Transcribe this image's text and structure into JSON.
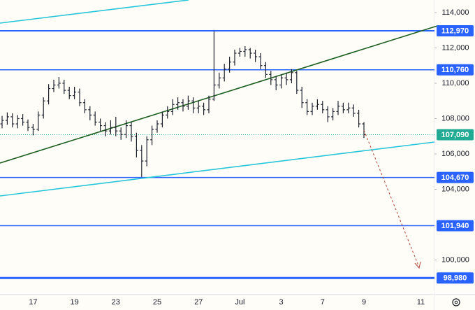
{
  "chart_data": {
    "type": "ohlc",
    "color": "#1e222d",
    "categories": [
      null,
      null,
      null,
      null,
      null,
      null,
      "17",
      null,
      null,
      null,
      null,
      null,
      null,
      null,
      "19",
      null,
      null,
      null,
      null,
      null,
      null,
      null,
      "23",
      null,
      null,
      null,
      null,
      null,
      null,
      null,
      "25",
      null,
      null,
      null,
      null,
      null,
      null,
      null,
      "27",
      null,
      null,
      null,
      null,
      null,
      null,
      null,
      "Jul",
      null,
      null,
      null,
      null,
      null,
      null,
      null,
      "3",
      null,
      null,
      null,
      null,
      null,
      null,
      null,
      "7",
      null,
      null,
      null,
      null,
      null,
      null,
      null,
      "9",
      null,
      null,
      null,
      null,
      null,
      null,
      null,
      null,
      null,
      null,
      "11",
      null,
      null
    ],
    "open": [
      107700,
      107900,
      108100,
      107700,
      108000,
      107800,
      107500,
      107400,
      108200,
      109000,
      109700,
      109900,
      110000,
      109600,
      109300,
      109500,
      108900,
      108500,
      108200,
      107800,
      107600,
      107300,
      107500,
      107300,
      107100,
      107600,
      107000,
      106200,
      105600,
      106800,
      107400,
      107700,
      108200,
      108400,
      108800,
      108900,
      108700,
      109000,
      108600,
      108700,
      108500,
      109100,
      109900,
      110300,
      110800,
      111200,
      111700,
      111800,
      111900,
      111700,
      111500,
      111000,
      110500,
      110200,
      109900,
      110300,
      110200,
      110600,
      109600,
      108900,
      108400,
      108700,
      108800,
      108500,
      108100,
      108400,
      108700,
      108500,
      108600,
      108300,
      107700,
      null,
      null,
      null,
      null,
      null,
      null,
      null,
      null,
      null,
      null,
      null,
      null,
      null
    ],
    "high": [
      108150,
      108350,
      108300,
      108200,
      108250,
      107950,
      107700,
      108400,
      109200,
      109950,
      110200,
      110350,
      110200,
      109800,
      109800,
      109700,
      109100,
      108700,
      108400,
      108000,
      107800,
      107900,
      108100,
      107500,
      107900,
      107800,
      107200,
      106500,
      107000,
      107600,
      107900,
      108400,
      108700,
      109100,
      109200,
      109100,
      109300,
      109200,
      109000,
      108900,
      109300,
      112930,
      110600,
      111100,
      111500,
      111900,
      112000,
      112100,
      112000,
      111900,
      111700,
      111200,
      110700,
      110400,
      110500,
      110600,
      110800,
      110700,
      109800,
      109100,
      108900,
      109100,
      109000,
      108700,
      108600,
      109000,
      108900,
      108900,
      108800,
      108500,
      107800,
      null,
      null,
      null,
      null,
      null,
      null,
      null,
      null,
      null,
      null,
      null,
      null,
      null
    ],
    "low": [
      107450,
      107650,
      107500,
      107450,
      107600,
      107300,
      107050,
      107300,
      108000,
      108800,
      109500,
      109700,
      109400,
      109100,
      109100,
      108700,
      108300,
      107900,
      107600,
      107300,
      107000,
      107100,
      107000,
      106800,
      106900,
      106700,
      105800,
      104700,
      105300,
      106500,
      107200,
      107500,
      108000,
      108200,
      108500,
      108400,
      108500,
      108300,
      108300,
      108200,
      108300,
      109000,
      109700,
      110100,
      110600,
      111000,
      111500,
      111500,
      111400,
      111200,
      110800,
      110300,
      109900,
      109600,
      109700,
      109900,
      110000,
      109400,
      108600,
      108200,
      108200,
      108500,
      108300,
      107800,
      107900,
      108200,
      108300,
      108300,
      108100,
      107500,
      106900,
      null,
      null,
      null,
      null,
      null,
      null,
      null,
      null,
      null,
      null,
      null,
      null,
      null
    ],
    "close": [
      107900,
      108100,
      107700,
      108000,
      107800,
      107500,
      107400,
      108200,
      109000,
      109700,
      109900,
      110000,
      109600,
      109300,
      109500,
      108900,
      108500,
      108200,
      107800,
      107600,
      107300,
      107500,
      107300,
      107100,
      107600,
      107000,
      106200,
      105600,
      106800,
      107400,
      107700,
      108200,
      108400,
      108800,
      108900,
      108700,
      109000,
      108600,
      108700,
      108500,
      109100,
      109900,
      110300,
      110800,
      111200,
      111700,
      111800,
      111900,
      111700,
      111500,
      111000,
      110500,
      110200,
      109900,
      110300,
      110200,
      110600,
      109600,
      108900,
      108400,
      108700,
      108800,
      108500,
      108100,
      108400,
      108700,
      108500,
      108600,
      108300,
      107700,
      107090,
      null,
      null,
      null,
      null,
      null,
      null,
      null,
      null,
      null,
      null,
      null,
      null,
      null
    ],
    "ylim": [
      98080,
      114710
    ],
    "yticks": [
      {
        "value": 100000,
        "label": "100,000"
      },
      {
        "value": 104000,
        "label": "104,000"
      },
      {
        "value": 106000,
        "label": "106,000"
      },
      {
        "value": 108000,
        "label": "108,000"
      },
      {
        "value": 110000,
        "label": "110,000"
      },
      {
        "value": 112000,
        "label": "112,000"
      },
      {
        "value": 114000,
        "label": "114,000"
      }
    ],
    "price_lines": [
      {
        "value": 112970,
        "label": "112,970",
        "color": "#2962ff",
        "width": 2
      },
      {
        "value": 110760,
        "label": "110,760",
        "color": "#2962ff",
        "width": 1.5
      },
      {
        "value": 107090,
        "label": "107,090",
        "color": "#22ab94",
        "width": 1,
        "dotted": true
      },
      {
        "value": 104670,
        "label": "104,670",
        "color": "#2962ff",
        "width": 1.5
      },
      {
        "value": 101940,
        "label": "101,940",
        "color": "#2962ff",
        "width": 1.5
      },
      {
        "value": 98980,
        "label": "98,980",
        "color": "#2962ff",
        "width": 3
      }
    ]
  }
}
